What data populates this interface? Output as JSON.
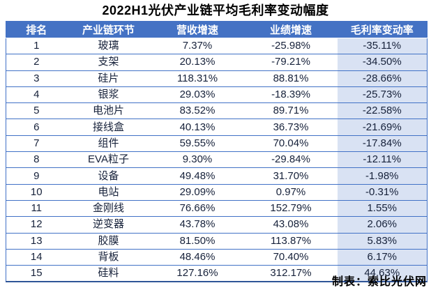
{
  "title": "2022H1光伏产业链平均毛利率变动幅度",
  "footer": {
    "credit": "制表：索比光伏网"
  },
  "colors": {
    "header_bg": "#4472C4",
    "header_text": "#FFFFFF",
    "highlight_column_bg": "#D9E2F3",
    "row_border": "#4171C6",
    "outer_border": "#2F5597",
    "body_text": "#16213A",
    "title_text": "#000000"
  },
  "chart_data": {
    "type": "table",
    "title": "2022H1光伏产业链平均毛利率变动幅度",
    "columns": [
      "排名",
      "产业链环节",
      "营收增速",
      "业绩增速",
      "毛利率变动率"
    ],
    "highlighted_column": "毛利率变动率",
    "rows": [
      [
        "1",
        "玻璃",
        "7.37%",
        "-25.98%",
        "-35.11%"
      ],
      [
        "2",
        "支架",
        "20.13%",
        "-79.21%",
        "-34.50%"
      ],
      [
        "3",
        "硅片",
        "118.31%",
        "88.81%",
        "-28.66%"
      ],
      [
        "4",
        "银浆",
        "29.03%",
        "-18.39%",
        "-25.73%"
      ],
      [
        "5",
        "电池片",
        "83.52%",
        "89.71%",
        "-22.58%"
      ],
      [
        "6",
        "接线盒",
        "40.13%",
        "36.73%",
        "-21.69%"
      ],
      [
        "7",
        "组件",
        "59.55%",
        "70.04%",
        "-17.84%"
      ],
      [
        "8",
        "EVA粒子",
        "9.30%",
        "-29.84%",
        "-12.11%"
      ],
      [
        "9",
        "设备",
        "49.48%",
        "31.70%",
        "-1.98%"
      ],
      [
        "10",
        "电站",
        "29.09%",
        "0.97%",
        "-0.31%"
      ],
      [
        "11",
        "金刚线",
        "76.66%",
        "152.79%",
        "1.55%"
      ],
      [
        "12",
        "逆变器",
        "43.78%",
        "43.08%",
        "2.06%"
      ],
      [
        "13",
        "胶膜",
        "81.50%",
        "113.87%",
        "5.83%"
      ],
      [
        "14",
        "背板",
        "48.46%",
        "70.40%",
        "6.17%"
      ],
      [
        "15",
        "硅料",
        "127.16%",
        "312.17%",
        "44.63%"
      ]
    ],
    "source_credit": "制表：索比光伏网"
  }
}
